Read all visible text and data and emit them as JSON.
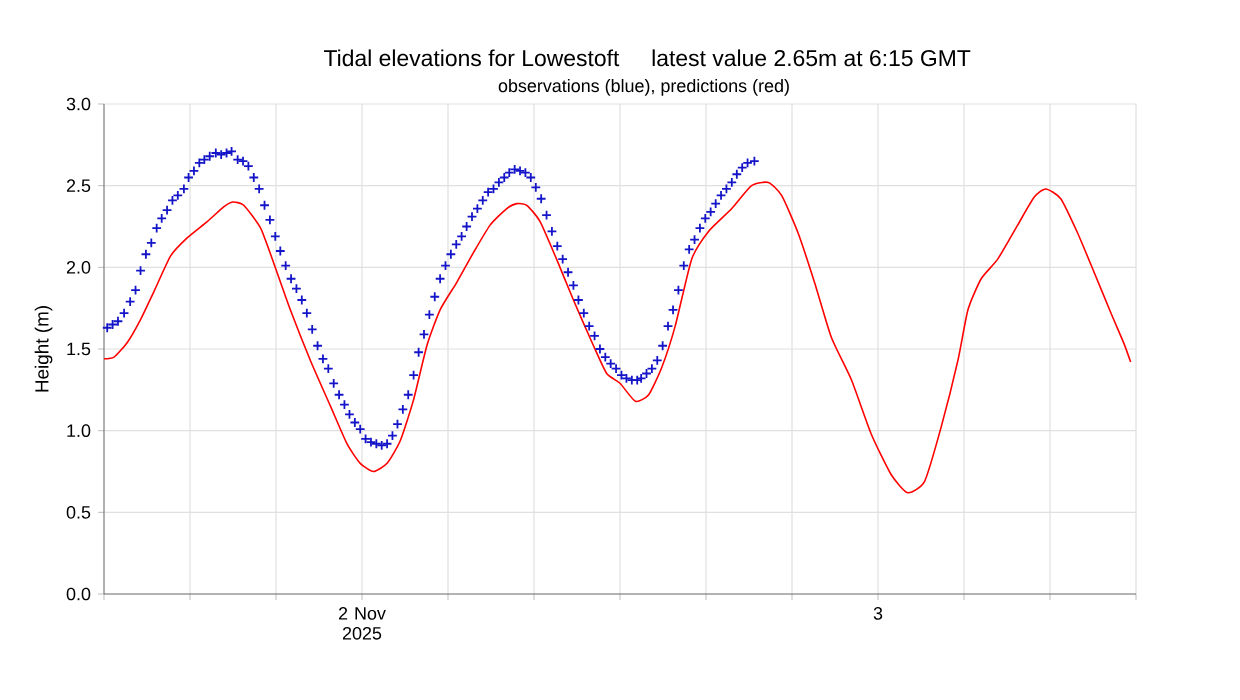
{
  "chart_data": {
    "type": "line",
    "title": "Tidal elevations for Lowestoft     latest value 2.65m at 6:15 GMT",
    "subtitle": "observations (blue), predictions (red)",
    "ylabel": "Height (m)",
    "xlim": [
      "2025-11-02T00:00",
      "2025-11-04T00:00"
    ],
    "ylim": [
      0,
      3
    ],
    "xticks": [
      {
        "value": "2025-11-02T00:00",
        "label": null
      },
      {
        "value": "2025-11-02T04:00",
        "label": null
      },
      {
        "value": "2025-11-02T08:00",
        "label": null
      },
      {
        "value": "2025-11-02T12:00",
        "label": "2 Nov 2025"
      },
      {
        "value": "2025-11-02T16:00",
        "label": null
      },
      {
        "value": "2025-11-02T20:00",
        "label": null
      },
      {
        "value": "2025-11-03T00:00",
        "label": null
      },
      {
        "value": "2025-11-03T04:00",
        "label": null
      },
      {
        "value": "2025-11-03T08:00",
        "label": null
      },
      {
        "value": "2025-11-03T12:00",
        "label": "3"
      },
      {
        "value": "2025-11-03T16:00",
        "label": null
      },
      {
        "value": "2025-11-03T20:00",
        "label": null
      },
      {
        "value": "2025-11-04T00:00",
        "label": null
      }
    ],
    "yticks": [
      {
        "value": 0,
        "label": "0.0"
      },
      {
        "value": 0.5,
        "label": "0.5"
      },
      {
        "value": 1,
        "label": "1.0"
      },
      {
        "value": 1.5,
        "label": "1.5"
      },
      {
        "value": 2,
        "label": "2.0"
      },
      {
        "value": 2.5,
        "label": "2.5"
      },
      {
        "value": 3,
        "label": "3.0"
      }
    ],
    "grid": true,
    "series": [
      {
        "color": "#ff0000",
        "marker": "none",
        "line_style": "solid",
        "x": [
          "2025-11-02T00:00",
          "2025-11-02T00:28",
          "2025-11-02T01:05",
          "2025-11-02T01:42",
          "2025-11-02T02:19",
          "2025-11-02T03:06",
          "2025-11-02T03:52",
          "2025-11-02T04:48",
          "2025-11-02T05:34",
          "2025-11-02T05:59",
          "2025-11-02T06:30",
          "2025-11-02T07:17",
          "2025-11-02T07:53",
          "2025-11-02T08:40",
          "2025-11-02T09:36",
          "2025-11-02T10:32",
          "2025-11-02T11:18",
          "2025-11-02T11:55",
          "2025-11-02T12:32",
          "2025-11-02T13:10",
          "2025-11-02T13:47",
          "2025-11-02T14:24",
          "2025-11-02T15:01",
          "2025-11-02T15:38",
          "2025-11-02T16:25",
          "2025-11-02T17:11",
          "2025-11-02T17:58",
          "2025-11-02T18:44",
          "2025-11-02T19:12",
          "2025-11-02T19:40",
          "2025-11-02T20:17",
          "2025-11-02T21:03",
          "2025-11-02T21:50",
          "2025-11-02T22:46",
          "2025-11-02T23:23",
          "2025-11-03T00:00",
          "2025-11-03T00:43",
          "2025-11-03T01:20",
          "2025-11-03T01:57",
          "2025-11-03T02:34",
          "2025-11-03T03:20",
          "2025-11-03T04:07",
          "2025-11-03T05:12",
          "2025-11-03T06:07",
          "2025-11-03T06:54",
          "2025-11-03T07:31",
          "2025-11-03T08:17",
          "2025-11-03T09:04",
          "2025-11-03T09:50",
          "2025-11-03T10:46",
          "2025-11-03T11:41",
          "2025-11-03T12:37",
          "2025-11-03T13:23",
          "2025-11-03T14:10",
          "2025-11-03T14:56",
          "2025-11-03T15:43",
          "2025-11-03T16:11",
          "2025-11-03T16:48",
          "2025-11-03T17:34",
          "2025-11-03T18:30",
          "2025-11-03T19:16",
          "2025-11-03T19:48",
          "2025-11-03T20:30",
          "2025-11-03T21:17",
          "2025-11-03T22:03",
          "2025-11-03T22:50",
          "2025-11-03T23:27",
          "2025-11-03T23:45"
        ],
        "values": [
          1.44,
          1.45,
          1.54,
          1.68,
          1.85,
          2.07,
          2.18,
          2.28,
          2.37,
          2.4,
          2.38,
          2.24,
          2.03,
          1.74,
          1.43,
          1.15,
          0.92,
          0.8,
          0.75,
          0.8,
          0.94,
          1.19,
          1.52,
          1.74,
          1.91,
          2.09,
          2.26,
          2.36,
          2.39,
          2.38,
          2.28,
          2.05,
          1.8,
          1.52,
          1.35,
          1.29,
          1.18,
          1.22,
          1.39,
          1.64,
          2.05,
          2.22,
          2.36,
          2.5,
          2.52,
          2.44,
          2.21,
          1.9,
          1.57,
          1.31,
          0.98,
          0.73,
          0.62,
          0.69,
          1.02,
          1.43,
          1.74,
          1.93,
          2.05,
          2.26,
          2.43,
          2.48,
          2.42,
          2.21,
          1.97,
          1.72,
          1.53,
          1.42
        ]
      },
      {
        "type": "scatter",
        "color": "#1414c8",
        "marker": "cross",
        "x": [
          "2025-11-02T00:09",
          "2025-11-02T00:24",
          "2025-11-02T00:39",
          "2025-11-02T00:56",
          "2025-11-02T01:13",
          "2025-11-02T01:28",
          "2025-11-02T01:42",
          "2025-11-02T01:57",
          "2025-11-02T02:12",
          "2025-11-02T02:27",
          "2025-11-02T02:41",
          "2025-11-02T02:56",
          "2025-11-02T03:11",
          "2025-11-02T03:26",
          "2025-11-02T03:43",
          "2025-11-02T03:56",
          "2025-11-02T04:11",
          "2025-11-02T04:26",
          "2025-11-02T04:40",
          "2025-11-02T04:55",
          "2025-11-02T05:12",
          "2025-11-02T05:27",
          "2025-11-02T05:42",
          "2025-11-02T05:56",
          "2025-11-02T06:13",
          "2025-11-02T06:28",
          "2025-11-02T06:43",
          "2025-11-02T06:58",
          "2025-11-02T07:13",
          "2025-11-02T07:28",
          "2025-11-02T07:43",
          "2025-11-02T07:58",
          "2025-11-02T08:12",
          "2025-11-02T08:27",
          "2025-11-02T08:42",
          "2025-11-02T08:57",
          "2025-11-02T09:12",
          "2025-11-02T09:26",
          "2025-11-02T09:41",
          "2025-11-02T09:56",
          "2025-11-02T10:11",
          "2025-11-02T10:26",
          "2025-11-02T10:41",
          "2025-11-02T10:56",
          "2025-11-02T11:11",
          "2025-11-02T11:25",
          "2025-11-02T11:40",
          "2025-11-02T11:55",
          "2025-11-02T12:10",
          "2025-11-02T12:25",
          "2025-11-02T12:40",
          "2025-11-02T12:55",
          "2025-11-02T13:10",
          "2025-11-02T13:25",
          "2025-11-02T13:39",
          "2025-11-02T13:54",
          "2025-11-02T14:09",
          "2025-11-02T14:24",
          "2025-11-02T14:38",
          "2025-11-02T14:53",
          "2025-11-02T15:08",
          "2025-11-02T15:23",
          "2025-11-02T15:38",
          "2025-11-02T15:53",
          "2025-11-02T16:08",
          "2025-11-02T16:23",
          "2025-11-02T16:38",
          "2025-11-02T16:52",
          "2025-11-02T17:07",
          "2025-11-02T17:22",
          "2025-11-02T17:37",
          "2025-11-02T17:52",
          "2025-11-02T18:07",
          "2025-11-02T18:22",
          "2025-11-02T18:37",
          "2025-11-02T18:51",
          "2025-11-02T19:06",
          "2025-11-02T19:21",
          "2025-11-02T19:36",
          "2025-11-02T19:51",
          "2025-11-02T20:05",
          "2025-11-02T20:20",
          "2025-11-02T20:35",
          "2025-11-02T20:50",
          "2025-11-02T21:05",
          "2025-11-02T21:20",
          "2025-11-02T21:35",
          "2025-11-02T21:50",
          "2025-11-02T22:04",
          "2025-11-02T22:19",
          "2025-11-02T22:34",
          "2025-11-02T22:49",
          "2025-11-02T23:04",
          "2025-11-02T23:19",
          "2025-11-02T23:34",
          "2025-11-02T23:49",
          "2025-11-03T00:04",
          "2025-11-03T00:18",
          "2025-11-03T00:33",
          "2025-11-03T00:48",
          "2025-11-03T00:59",
          "2025-11-03T01:14",
          "2025-11-03T01:29",
          "2025-11-03T01:44",
          "2025-11-03T01:59",
          "2025-11-03T02:14",
          "2025-11-03T02:28",
          "2025-11-03T02:43",
          "2025-11-03T02:58",
          "2025-11-03T03:13",
          "2025-11-03T03:28",
          "2025-11-03T03:43",
          "2025-11-03T03:58",
          "2025-11-03T04:13",
          "2025-11-03T04:27",
          "2025-11-03T04:42",
          "2025-11-03T04:57",
          "2025-11-03T05:12",
          "2025-11-03T05:26",
          "2025-11-03T05:41",
          "2025-11-03T05:56",
          "2025-11-03T06:15"
        ],
        "values": [
          1.63,
          1.65,
          1.67,
          1.72,
          1.79,
          1.86,
          1.98,
          2.08,
          2.15,
          2.24,
          2.3,
          2.35,
          2.41,
          2.44,
          2.48,
          2.55,
          2.59,
          2.64,
          2.66,
          2.68,
          2.7,
          2.69,
          2.7,
          2.71,
          2.66,
          2.65,
          2.62,
          2.55,
          2.48,
          2.38,
          2.29,
          2.19,
          2.1,
          2.01,
          1.93,
          1.87,
          1.8,
          1.72,
          1.62,
          1.52,
          1.44,
          1.38,
          1.29,
          1.22,
          1.16,
          1.1,
          1.05,
          1.01,
          0.95,
          0.93,
          0.92,
          0.91,
          0.92,
          0.97,
          1.04,
          1.13,
          1.22,
          1.34,
          1.48,
          1.59,
          1.71,
          1.82,
          1.93,
          2.01,
          2.08,
          2.14,
          2.19,
          2.25,
          2.31,
          2.36,
          2.41,
          2.46,
          2.48,
          2.52,
          2.55,
          2.58,
          2.6,
          2.59,
          2.58,
          2.55,
          2.49,
          2.42,
          2.32,
          2.22,
          2.13,
          2.05,
          1.97,
          1.89,
          1.8,
          1.72,
          1.64,
          1.58,
          1.5,
          1.45,
          1.41,
          1.38,
          1.34,
          1.32,
          1.31,
          1.31,
          1.32,
          1.35,
          1.38,
          1.43,
          1.52,
          1.64,
          1.74,
          1.86,
          2.01,
          2.11,
          2.17,
          2.24,
          2.3,
          2.34,
          2.39,
          2.44,
          2.48,
          2.52,
          2.57,
          2.61,
          2.64,
          2.65
        ]
      }
    ]
  }
}
